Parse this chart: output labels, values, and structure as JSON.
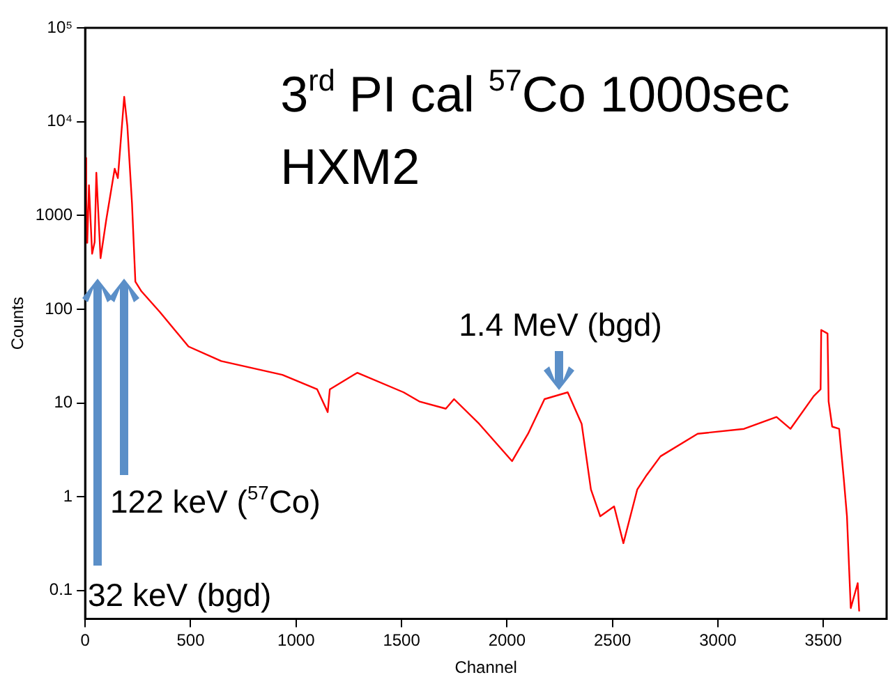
{
  "chart_data": {
    "type": "line",
    "title": "3$^{rd}$ PI cal $^{57}$Co 1000sec",
    "subtitle": "HXM2",
    "xlabel": "Channel",
    "ylabel": "Counts",
    "x": [
      0,
      5,
      10,
      18,
      33,
      45,
      53,
      73,
      100,
      140,
      155,
      185,
      200,
      222,
      238,
      267,
      355,
      490,
      645,
      935,
      1100,
      1150,
      1160,
      1290,
      1510,
      1584,
      1710,
      1749,
      1868,
      2024,
      2100,
      2178,
      2288,
      2354,
      2398,
      2442,
      2508,
      2552,
      2618,
      2662,
      2728,
      2904,
      3124,
      3278,
      3344,
      3454,
      3487,
      3490,
      3520,
      3525,
      3542,
      3575,
      3597,
      3612,
      3630,
      3663,
      3670
    ],
    "series": [
      {
        "color": "#ff0000",
        "values": [
          4100,
          1500,
          510,
          2100,
          390,
          520,
          2850,
          350,
          900,
          3150,
          2500,
          18400,
          9000,
          1350,
          197,
          155,
          93,
          40,
          28,
          20,
          14,
          8,
          14,
          21,
          13,
          10.4,
          8.7,
          11,
          6,
          2.4,
          4.7,
          11,
          13,
          6,
          1.2,
          0.62,
          0.79,
          0.32,
          1.2,
          1.7,
          2.7,
          4.7,
          5.3,
          7.1,
          5.3,
          11.8,
          14,
          60,
          55,
          10.4,
          5.6,
          5.3,
          1.55,
          0.62,
          0.065,
          0.12,
          0.06
        ]
      }
    ],
    "xlim": [
      0,
      3800
    ],
    "xticks": [
      0,
      500,
      1000,
      1500,
      2000,
      2500,
      3000,
      3500
    ],
    "log": "y",
    "ylim": [
      0.05,
      100000
    ],
    "yticks": [
      0.1,
      1,
      10,
      100,
      1000,
      {
        "value": 10000,
        "label": "10⁴"
      },
      {
        "value": 100000,
        "label": "10⁵"
      }
    ],
    "grid": false,
    "legend": false,
    "marker": "none",
    "line_style": "solid",
    "annotations": [
      "32 keV (bgd)",
      "122 keV ($^{57}$Co)",
      "1.4 MeV (bgd)"
    ]
  }
}
